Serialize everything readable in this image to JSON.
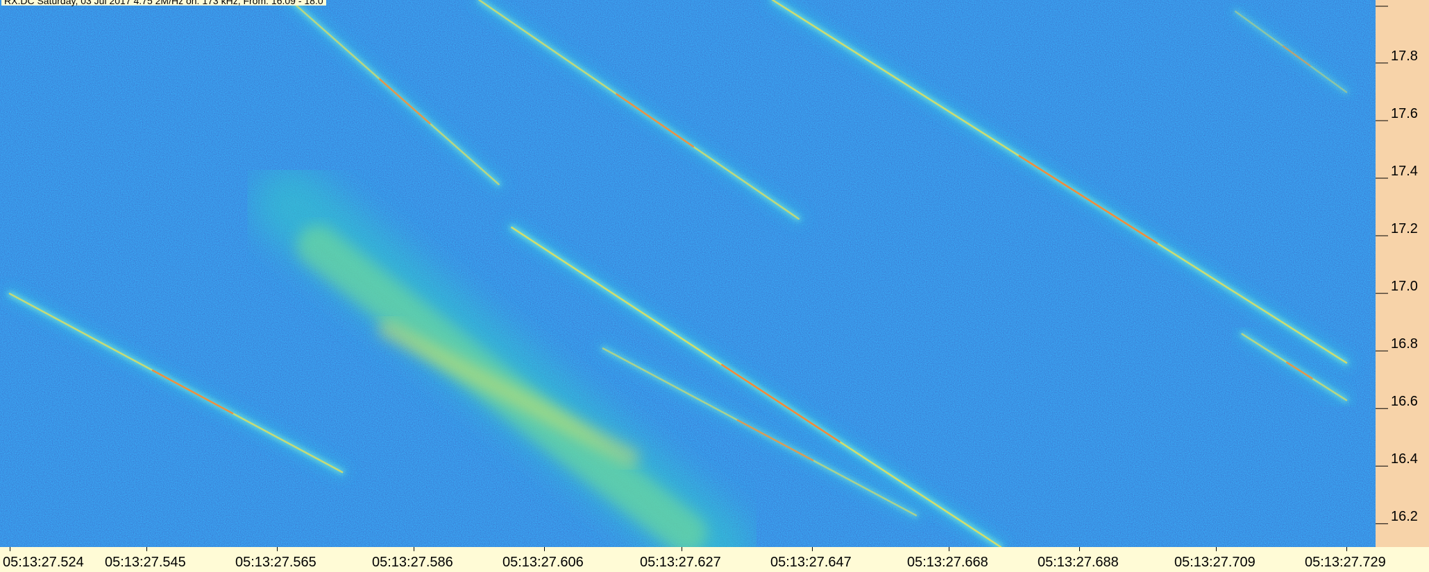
{
  "header": "RX:DC Saturday, 03 Jul 2017 4.75 2M/Hz  on: 173 kHz, From: 16.09 - 18.0",
  "chart_data": {
    "type": "heatmap",
    "title": "",
    "xlabel": "",
    "ylabel": "",
    "x_ticks": [
      "05:13:27.524",
      "05:13:27.545",
      "05:13:27.565",
      "05:13:27.586",
      "05:13:27.606",
      "05:13:27.627",
      "05:13:27.647",
      "05:13:27.668",
      "05:13:27.688",
      "05:13:27.709",
      "05:13:27.729"
    ],
    "y_ticks": [
      "17.8",
      "17.6",
      "17.4",
      "17.2",
      "17.0",
      "16.8",
      "16.6",
      "16.4",
      "16.2"
    ],
    "ylim": [
      16.09,
      17.99
    ],
    "colormap": "jet",
    "colors": {
      "background": "#0d44c4",
      "x_axis_bg": "#fffbd6",
      "y_axis_bg": "#f7d3a9"
    },
    "features": [
      {
        "kind": "trace",
        "x_start": "05:13:27.524",
        "y_start": 16.97,
        "x_end": "05:13:27.575",
        "y_end": 16.35,
        "intensity": 0.9
      },
      {
        "kind": "trace",
        "x_start": "05:13:27.567",
        "y_start": 17.99,
        "x_end": "05:13:27.599",
        "y_end": 17.35,
        "intensity": 0.8
      },
      {
        "kind": "trace",
        "x_start": "05:13:27.601",
        "y_start": 17.2,
        "x_end": "05:13:27.676",
        "y_end": 16.09,
        "intensity": 1.0
      },
      {
        "kind": "trace",
        "x_start": "05:13:27.615",
        "y_start": 16.78,
        "x_end": "05:13:27.663",
        "y_end": 16.2,
        "intensity": 0.7
      },
      {
        "kind": "trace",
        "x_start": "05:13:27.596",
        "y_start": 17.99,
        "x_end": "05:13:27.645",
        "y_end": 17.23,
        "intensity": 0.85
      },
      {
        "kind": "trace",
        "x_start": "05:13:27.641",
        "y_start": 17.99,
        "x_end": "05:13:27.729",
        "y_end": 16.73,
        "intensity": 0.95
      },
      {
        "kind": "trace",
        "x_start": "05:13:27.713",
        "y_start": 16.83,
        "x_end": "05:13:27.729",
        "y_end": 16.6,
        "intensity": 0.8
      },
      {
        "kind": "trace",
        "x_start": "05:13:27.712",
        "y_start": 17.95,
        "x_end": "05:13:27.729",
        "y_end": 17.67,
        "intensity": 0.5
      },
      {
        "kind": "blob",
        "x_start": "05:13:27.567",
        "y_start": 17.28,
        "x_end": "05:13:27.632",
        "y_end": 16.09,
        "intensity": 0.75
      }
    ]
  }
}
